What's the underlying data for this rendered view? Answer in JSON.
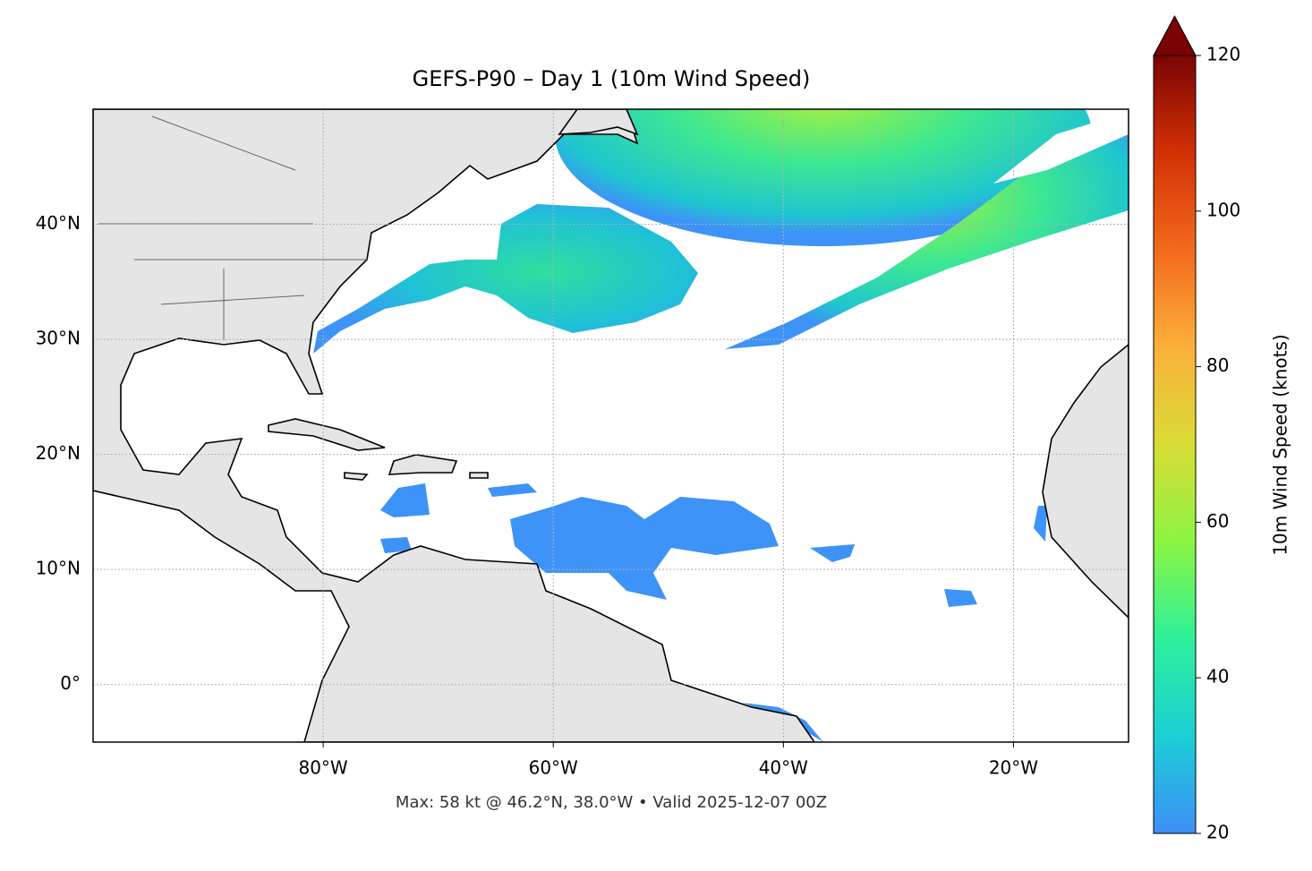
{
  "chart_data": {
    "type": "map",
    "title": "GEFS-P90 – Day 1 (10m Wind Speed)",
    "footnote": "Max: 58 kt @ 46.2°N, 38.0°W • Valid 2025-12-07 00Z",
    "xlim": [
      -100,
      -10
    ],
    "ylim": [
      -5,
      50
    ],
    "xticks": [
      {
        "value": -80,
        "label": "80°W"
      },
      {
        "value": -60,
        "label": "60°W"
      },
      {
        "value": -40,
        "label": "40°W"
      },
      {
        "value": -20,
        "label": "20°W"
      }
    ],
    "yticks": [
      {
        "value": 0,
        "label": "0°"
      },
      {
        "value": 10,
        "label": "10°N"
      },
      {
        "value": 20,
        "label": "20°N"
      },
      {
        "value": 30,
        "label": "30°N"
      },
      {
        "value": 40,
        "label": "40°N"
      }
    ],
    "grid": true,
    "colorbar": {
      "label": "10m Wind Speed (knots)",
      "lim": [
        20,
        120
      ],
      "ticks": [
        20,
        40,
        60,
        80,
        100,
        120
      ],
      "colors": [
        "#3e8ef7",
        "#1ccfd5",
        "#2df09a",
        "#8cf542",
        "#d9dc36",
        "#fbb03b",
        "#f36a1c",
        "#d23105",
        "#7a0403"
      ]
    }
  }
}
